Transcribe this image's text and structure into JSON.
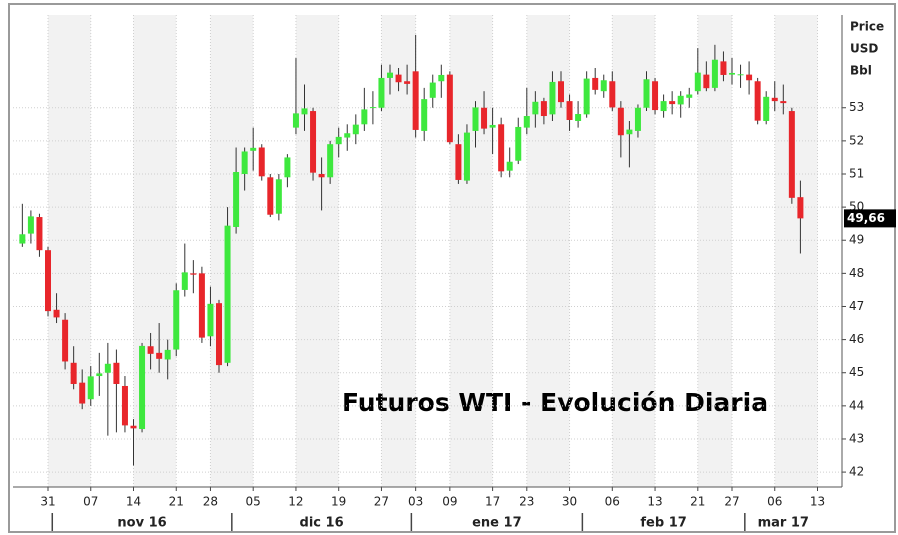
{
  "chart_data": {
    "type": "candlestick",
    "title": "Futuros WTI - Evolución Diaria",
    "y_axis_label": [
      "Price",
      "USD",
      "Bbl"
    ],
    "categories": [
      null,
      null,
      null,
      "31",
      null,
      null,
      null,
      null,
      "07",
      null,
      null,
      null,
      null,
      "14",
      null,
      null,
      null,
      null,
      "21",
      null,
      null,
      null,
      "28",
      null,
      null,
      null,
      null,
      "05",
      null,
      null,
      null,
      null,
      "12",
      null,
      null,
      null,
      null,
      "19",
      null,
      null,
      null,
      null,
      "27",
      null,
      null,
      null,
      "03",
      null,
      null,
      null,
      "09",
      null,
      null,
      null,
      null,
      "17",
      null,
      null,
      null,
      "23",
      null,
      null,
      null,
      null,
      "30",
      null,
      null,
      null,
      null,
      "06",
      null,
      null,
      null,
      null,
      "13",
      null,
      null,
      null,
      null,
      "21",
      null,
      null,
      null,
      "27",
      null,
      null,
      null,
      null,
      "06",
      null,
      null,
      null,
      null,
      "13"
    ],
    "months": [
      {
        "label": "nov 16",
        "first": 4,
        "last": 24
      },
      {
        "label": "dic 16",
        "first": 25,
        "last": 45
      },
      {
        "label": "ene 17",
        "first": 46,
        "last": 65
      },
      {
        "label": "feb 17",
        "first": 66,
        "last": 84
      },
      {
        "label": "mar 17",
        "first": 85,
        "last": 93
      }
    ],
    "open": [
      48.9,
      49.2,
      49.7,
      48.7,
      46.9,
      46.6,
      45.3,
      44.7,
      44.2,
      44.9,
      45.0,
      45.3,
      44.6,
      43.4,
      43.3,
      45.8,
      45.6,
      45.4,
      45.7,
      47.5,
      48.0,
      48.0,
      46.1,
      47.1,
      45.3,
      49.4,
      51.0,
      51.7,
      51.8,
      50.9,
      49.8,
      50.9,
      52.4,
      52.8,
      52.9,
      51.0,
      50.9,
      51.9,
      52.1,
      52.2,
      52.5,
      53.0,
      53.0,
      53.9,
      54.0,
      53.8,
      54.1,
      52.3,
      53.3,
      53.8,
      54.0,
      51.9,
      50.8,
      52.3,
      53.0,
      52.4,
      52.5,
      51.1,
      51.4,
      52.4,
      52.8,
      53.2,
      52.8,
      53.8,
      53.2,
      52.6,
      52.8,
      53.9,
      53.5,
      53.8,
      53.0,
      52.2,
      52.3,
      53.0,
      53.8,
      52.9,
      53.2,
      53.1,
      53.3,
      53.5,
      54.0,
      53.6,
      54.4,
      54.0,
      54.0,
      54.0,
      53.8,
      52.6,
      53.3,
      53.2,
      52.9,
      50.3,
      null,
      null
    ],
    "high": [
      50.1,
      49.9,
      49.8,
      48.8,
      47.4,
      46.8,
      45.8,
      45.1,
      45.2,
      45.6,
      45.9,
      45.7,
      44.9,
      43.6,
      45.9,
      46.2,
      46.5,
      46.0,
      47.7,
      48.9,
      48.4,
      48.2,
      47.6,
      47.2,
      50.0,
      51.8,
      51.8,
      52.4,
      51.9,
      51.0,
      51.0,
      51.6,
      54.5,
      53.7,
      53.0,
      51.5,
      52.0,
      52.4,
      52.5,
      52.8,
      53.6,
      53.5,
      54.3,
      54.3,
      54.2,
      54.3,
      55.2,
      53.6,
      54.0,
      54.3,
      54.1,
      52.2,
      52.5,
      53.2,
      53.5,
      53.0,
      52.7,
      51.8,
      52.7,
      53.6,
      53.5,
      53.3,
      54.1,
      54.1,
      53.4,
      53.2,
      54.1,
      54.2,
      54.0,
      54.1,
      53.2,
      52.6,
      53.1,
      54.1,
      53.9,
      53.4,
      53.5,
      53.5,
      53.6,
      54.8,
      54.4,
      54.9,
      54.7,
      54.5,
      54.3,
      54.4,
      53.9,
      53.5,
      53.8,
      53.7,
      53.0,
      50.8,
      null,
      null
    ],
    "low": [
      48.8,
      48.9,
      48.5,
      46.7,
      46.5,
      45.1,
      44.5,
      43.9,
      44.0,
      44.3,
      43.1,
      43.2,
      43.2,
      42.2,
      43.2,
      45.1,
      45.0,
      44.8,
      45.5,
      47.3,
      47.4,
      45.9,
      45.8,
      45.0,
      45.2,
      49.2,
      50.5,
      51.1,
      50.8,
      49.7,
      49.6,
      50.6,
      52.2,
      52.3,
      50.8,
      49.9,
      50.7,
      51.5,
      51.7,
      51.9,
      52.3,
      52.5,
      52.9,
      53.4,
      53.5,
      53.4,
      52.1,
      52.0,
      53.0,
      53.3,
      51.9,
      50.7,
      50.7,
      51.8,
      52.2,
      51.6,
      50.9,
      50.9,
      51.3,
      52.2,
      52.4,
      52.5,
      52.6,
      53.0,
      52.3,
      52.4,
      52.7,
      53.4,
      53.3,
      52.9,
      51.5,
      51.2,
      52.1,
      52.9,
      52.8,
      52.7,
      52.8,
      52.7,
      53.0,
      53.4,
      53.5,
      53.5,
      53.8,
      53.7,
      53.6,
      53.4,
      52.5,
      52.5,
      52.9,
      52.8,
      50.1,
      48.6,
      null,
      null
    ],
    "close": [
      49.18,
      49.72,
      48.7,
      46.86,
      46.67,
      45.34,
      44.66,
      44.07,
      44.89,
      44.98,
      45.27,
      44.66,
      43.41,
      43.32,
      45.81,
      45.57,
      45.42,
      45.69,
      47.49,
      48.03,
      47.96,
      46.06,
      47.08,
      45.23,
      49.44,
      51.06,
      51.68,
      51.79,
      50.93,
      49.77,
      50.84,
      51.5,
      52.83,
      52.98,
      51.04,
      50.9,
      51.9,
      52.12,
      52.23,
      52.49,
      52.95,
      53.02,
      53.9,
      54.06,
      53.77,
      53.72,
      52.33,
      53.26,
      53.76,
      53.99,
      51.96,
      50.82,
      52.25,
      53.01,
      52.37,
      52.48,
      51.08,
      51.37,
      52.42,
      52.75,
      53.18,
      52.75,
      53.78,
      53.17,
      52.63,
      52.81,
      53.88,
      53.54,
      53.83,
      53.01,
      52.17,
      52.34,
      53.0,
      53.86,
      52.93,
      53.2,
      53.11,
      53.36,
      53.4,
      54.06,
      53.59,
      54.45,
      53.99,
      54.05,
      54.01,
      53.83,
      52.61,
      53.33,
      53.2,
      53.14,
      50.28,
      49.66,
      null,
      null
    ],
    "last_close_label": "49,66",
    "up_color": "#3ee83e",
    "down_color": "#e8262b",
    "ylim": [
      41.55,
      55.8
    ],
    "yticks": [
      42,
      43,
      44,
      45,
      46,
      47,
      48,
      49,
      50,
      51,
      52,
      53
    ],
    "grid": true
  }
}
